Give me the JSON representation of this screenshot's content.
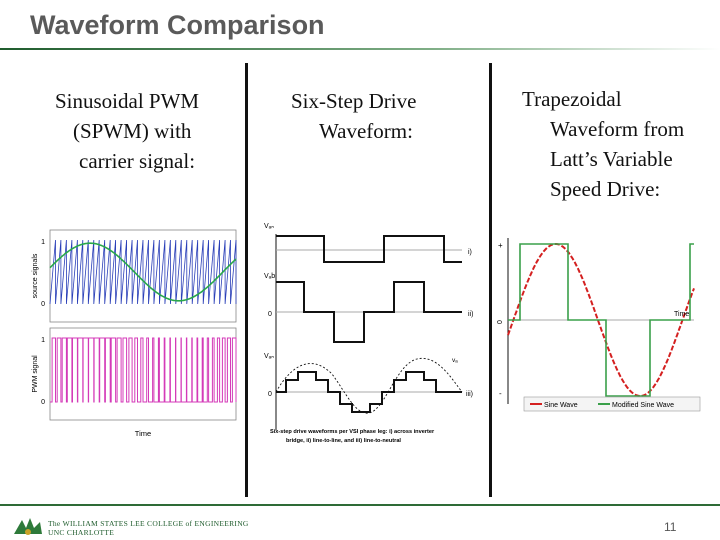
{
  "slide": {
    "title": "Waveform Comparison",
    "page_number": "11",
    "footer": {
      "line1": "The WILLIAM STATES LEE COLLEGE of ENGINEERING",
      "line2": "UNC CHARLOTTE"
    }
  },
  "columns": [
    {
      "lines": [
        "Sinusoidal PWM",
        "(SPWM) with",
        "carrier signal:"
      ]
    },
    {
      "lines": [
        "Six-Step Drive",
        "Waveform:"
      ]
    },
    {
      "lines": [
        "Trapezoidal",
        "Waveform from",
        "Latt’s Variable",
        "Speed Drive:"
      ]
    }
  ],
  "spwm_figure": {
    "top_ylabel": "source signals",
    "bottom_ylabel": "PWM signal",
    "xlabel": "Time",
    "tick_top_1": "1",
    "tick_top_0": "0",
    "tick_bottom_1": "1",
    "tick_bottom_0": "0",
    "sine_color": "#2aa84a",
    "carrier_color": "#2a3fb8",
    "pwm_color": "#d43ab8"
  },
  "sixstep_figure": {
    "label_van": "Vₐₙ",
    "label_vab": "Vₐb",
    "label_vaneg": "Vₐₙ",
    "label_i": "i)",
    "label_ii": "ii)",
    "label_iii": "iii)",
    "label_va": "vₐ",
    "zero": "0",
    "caption_line1": "Six-step drive waveforms per VSI phase leg: i) across inverter",
    "caption_line2": "bridge, ii) line-to-line, and iii) line-to-neutral"
  },
  "trap_figure": {
    "plus": "+",
    "zero": "0",
    "minus": "-",
    "time_label": "Time",
    "legend_sine": "Sine Wave",
    "legend_modified": "Modified Sine Wave",
    "sine_color": "#d42020",
    "modified_color": "#3aa04a"
  }
}
